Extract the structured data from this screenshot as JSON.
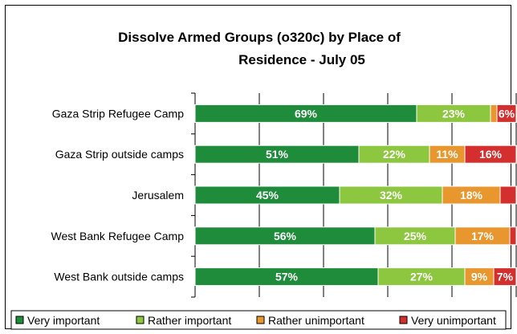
{
  "chart_data": {
    "type": "bar",
    "orientation": "horizontal",
    "stacked": true,
    "title": "Dissolve Armed Groups (o320c) by Place of Residence - July 05",
    "title_lines": [
      "Dissolve Armed Groups (o320c) by Place of",
      "Residence - July 05"
    ],
    "categories": [
      "Gaza Strip Refugee Camp",
      "Gaza Strip outside camps",
      "Jerusalem",
      "West Bank Refugee Camp",
      "West Bank outside camps"
    ],
    "series": [
      {
        "name": "Very important",
        "color": "#1e8c3a",
        "values": [
          69,
          51,
          45,
          56,
          57
        ],
        "labels": [
          "69%",
          "51%",
          "45%",
          "56%",
          "57%"
        ]
      },
      {
        "name": "Rather important",
        "color": "#8dc63f",
        "values": [
          23,
          22,
          32,
          25,
          27
        ],
        "labels": [
          "23%",
          "22%",
          "32%",
          "25%",
          "27%"
        ]
      },
      {
        "name": "Rather unimportant",
        "color": "#e8962e",
        "values": [
          2,
          11,
          18,
          17,
          9
        ],
        "labels": [
          "",
          "11%",
          "18%",
          "17%",
          "9%"
        ]
      },
      {
        "name": "Very unimportant",
        "color": "#d32f2f",
        "values": [
          6,
          16,
          5,
          2,
          7
        ],
        "labels": [
          "6%",
          "16%",
          "",
          "",
          "7%"
        ]
      }
    ],
    "xlim": [
      0,
      100
    ],
    "grid": true,
    "legend_position": "bottom"
  }
}
